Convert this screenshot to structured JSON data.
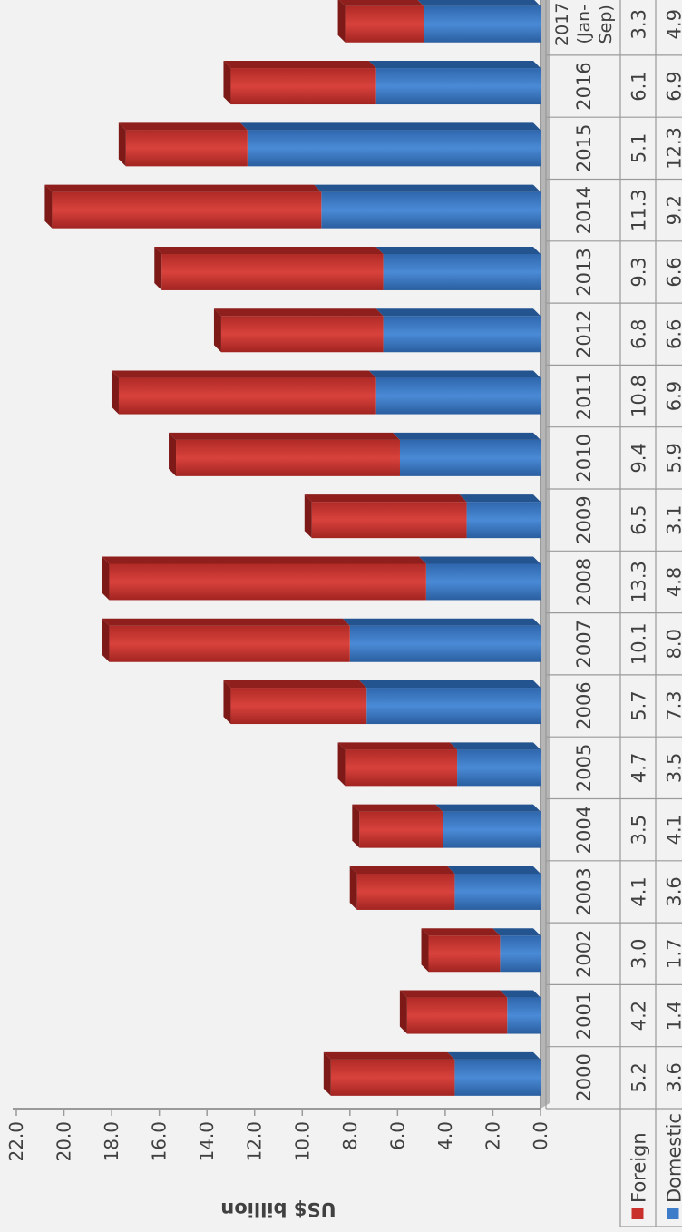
{
  "chart_data": {
    "type": "bar",
    "stacked": true,
    "orientation": "vertical-rotated",
    "categories": [
      "2000",
      "2001",
      "2002",
      "2003",
      "2004",
      "2005",
      "2006",
      "2007",
      "2008",
      "2009",
      "2010",
      "2011",
      "2012",
      "2013",
      "2014",
      "2015",
      "2016",
      "2017 (Jan-Sep)"
    ],
    "series": [
      {
        "name": "Domestic",
        "color": "#3d7cc9",
        "values": [
          3.6,
          1.4,
          1.7,
          3.6,
          4.1,
          3.5,
          7.3,
          8.0,
          4.8,
          3.1,
          5.9,
          6.9,
          6.6,
          6.6,
          9.2,
          12.3,
          6.9,
          4.9
        ],
        "labels": [
          "3.6",
          "1.4",
          "1.7",
          "3.6",
          "4.1",
          "3.5",
          "7.3",
          "8.0",
          "4.8",
          "3.1",
          "5.9",
          "6.9",
          "6.6",
          "6.6",
          "9.2",
          "12.3",
          "6.9",
          "4.9"
        ]
      },
      {
        "name": "Foreign",
        "color": "#c9302c",
        "values": [
          5.2,
          4.2,
          3.0,
          4.1,
          3.5,
          4.7,
          5.7,
          10.1,
          13.3,
          6.5,
          9.4,
          10.8,
          6.8,
          9.3,
          11.3,
          5.1,
          6.1,
          3.3
        ],
        "labels": [
          "5.2",
          "4.2",
          "3.0",
          "4.1",
          "3.5",
          "4.7",
          "5.7",
          "10.1",
          "13.3",
          "6.5",
          "9.4",
          "10.8",
          "6.8",
          "9.3",
          "11.3",
          "5.1",
          "6.1",
          "3.3"
        ]
      }
    ],
    "ylabel": "US$ billion",
    "ylim": [
      0,
      22
    ],
    "yticks": [
      "0.0",
      "2.0",
      "4.0",
      "6.0",
      "8.0",
      "10.0",
      "12.0",
      "14.0",
      "16.0",
      "18.0",
      "20.0",
      "22.0"
    ],
    "data_table": true,
    "legend": "data-table"
  }
}
